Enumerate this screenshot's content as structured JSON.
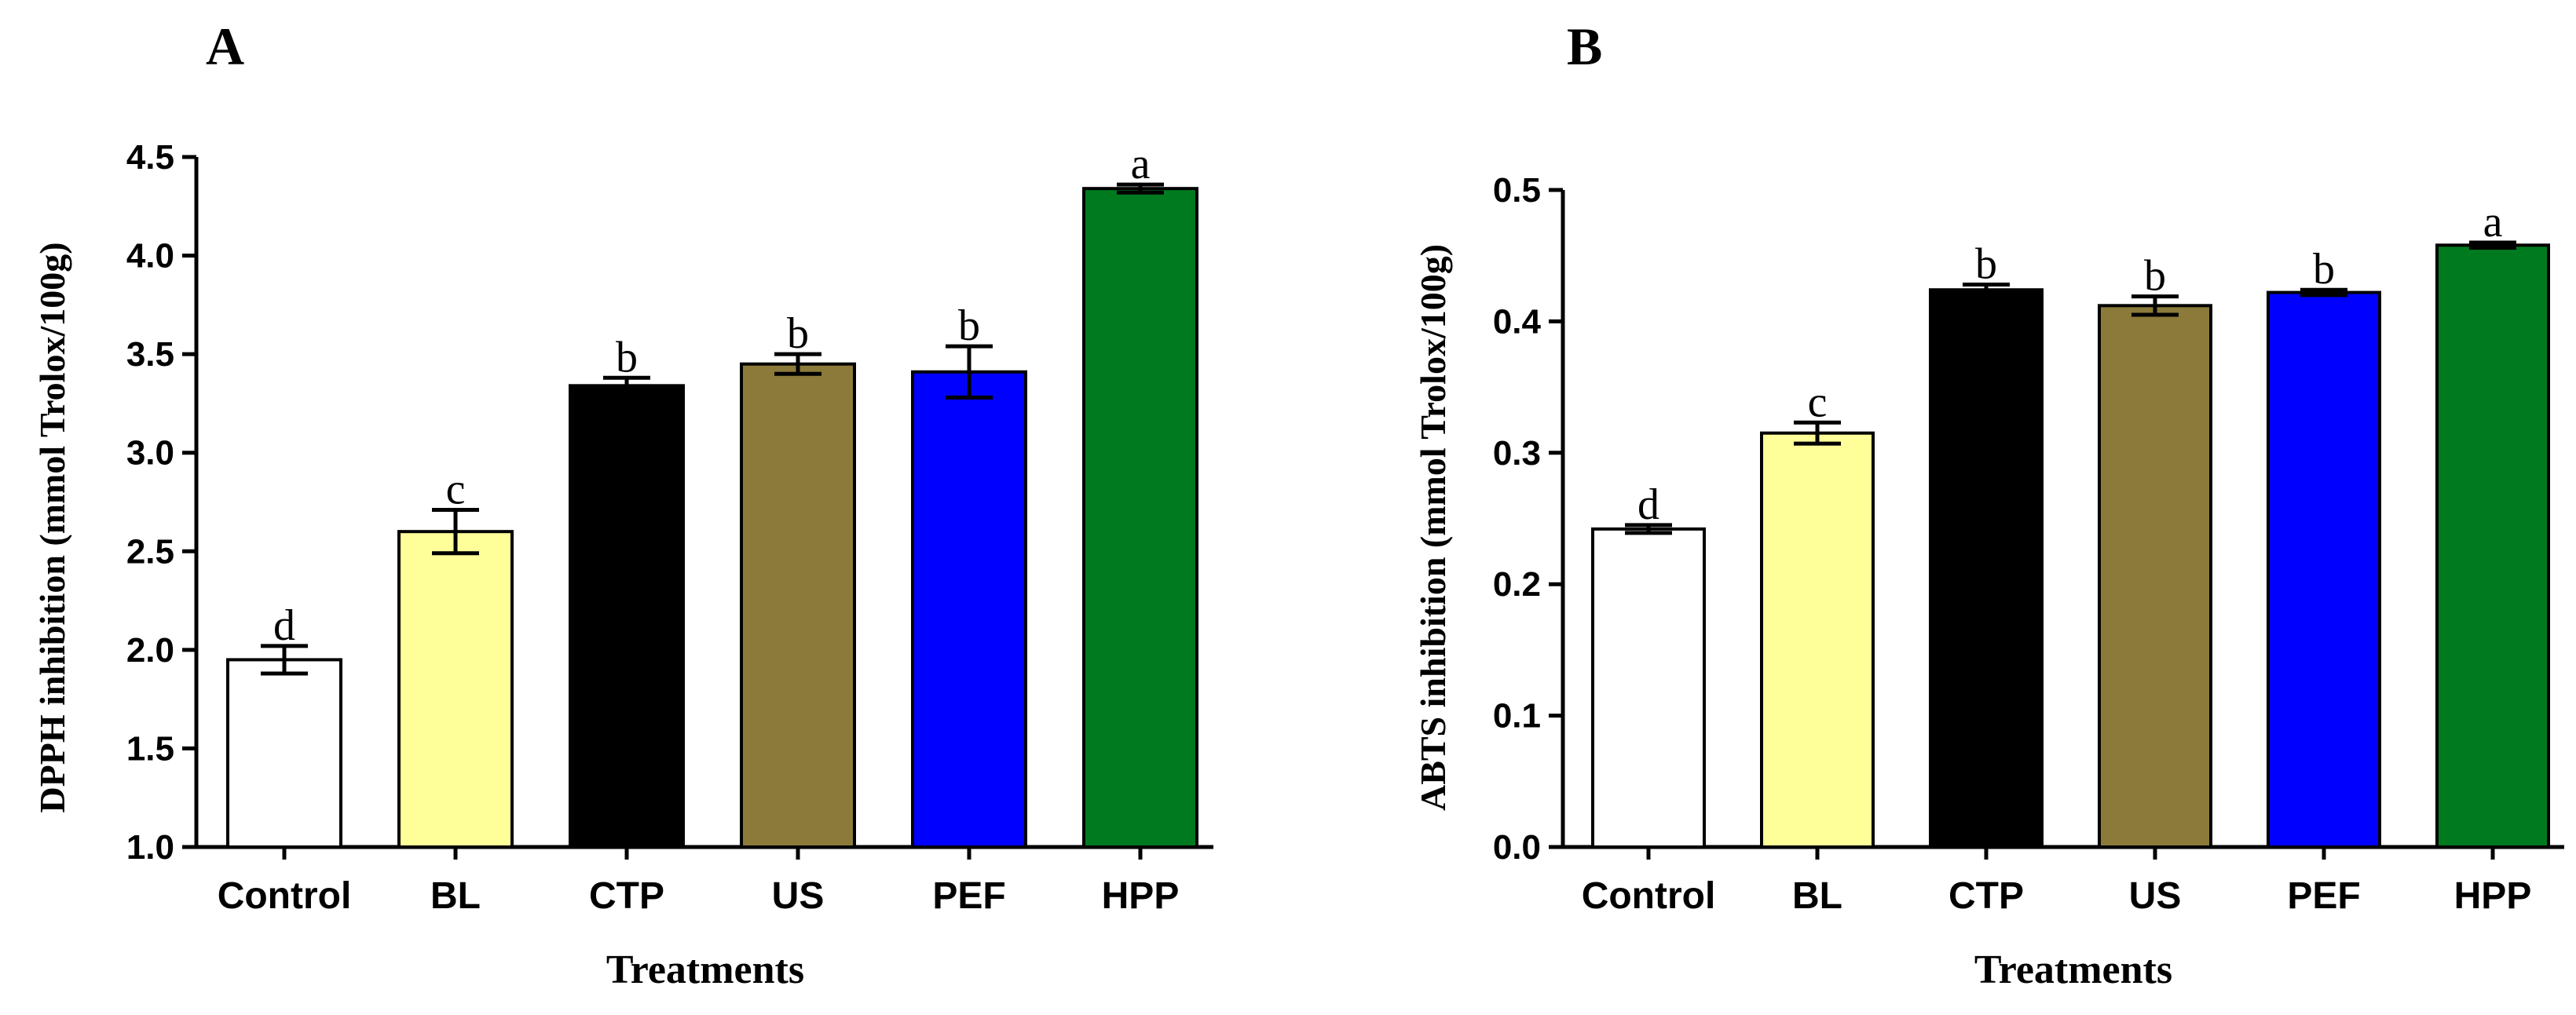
{
  "chart_data": [
    {
      "type": "bar",
      "panel": "A",
      "categories": [
        "Control",
        "BL",
        "CTP",
        "US",
        "PEF",
        "HPP"
      ],
      "values": [
        1.95,
        2.6,
        3.34,
        3.45,
        3.41,
        4.34
      ],
      "errors": [
        0.07,
        0.11,
        0.04,
        0.05,
        0.13,
        0.02
      ],
      "letters": [
        "d",
        "c",
        "b",
        "b",
        "b",
        "a"
      ],
      "colors": [
        "#ffffff",
        "#ffff99",
        "#000000",
        "#8b7a3a",
        "#0000ff",
        "#007a1f"
      ],
      "xlabel": "Treatments",
      "ylabel": "DPPH inhibition (mmol Trolox/100g)",
      "ylim": [
        1.0,
        4.5
      ],
      "yticks": [
        "1.0",
        "1.5",
        "2.0",
        "2.5",
        "3.0",
        "3.5",
        "4.0",
        "4.5"
      ],
      "grid": false
    },
    {
      "type": "bar",
      "panel": "B",
      "categories": [
        "Control",
        "BL",
        "CTP",
        "US",
        "PEF",
        "HPP"
      ],
      "values": [
        0.242,
        0.315,
        0.424,
        0.412,
        0.422,
        0.458
      ],
      "errors": [
        0.003,
        0.008,
        0.004,
        0.007,
        0.002,
        0.002
      ],
      "letters": [
        "d",
        "c",
        "b",
        "b",
        "b",
        "a"
      ],
      "colors": [
        "#ffffff",
        "#ffff99",
        "#000000",
        "#8b7a3a",
        "#0000ff",
        "#007a1f"
      ],
      "xlabel": "Treatments",
      "ylabel": "ABTS inhibition (mmol Trolox/100g)",
      "ylim": [
        0.0,
        0.5
      ],
      "yticks": [
        "0.0",
        "0.1",
        "0.2",
        "0.3",
        "0.4",
        "0.5"
      ],
      "grid": false
    }
  ]
}
